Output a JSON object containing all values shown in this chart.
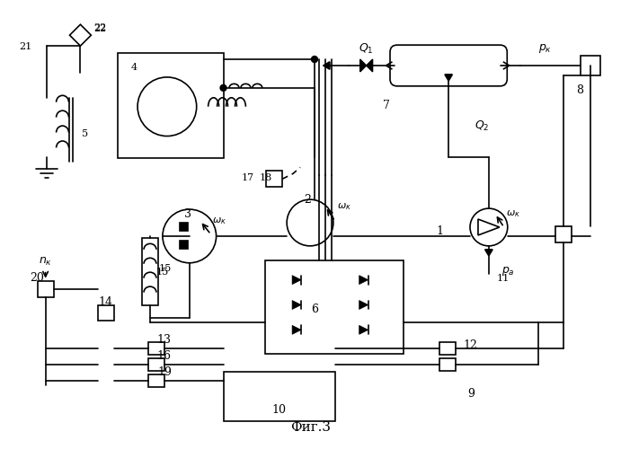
{
  "title": "Фиг.3",
  "bg": "white",
  "lc": "black",
  "lw": 1.2
}
